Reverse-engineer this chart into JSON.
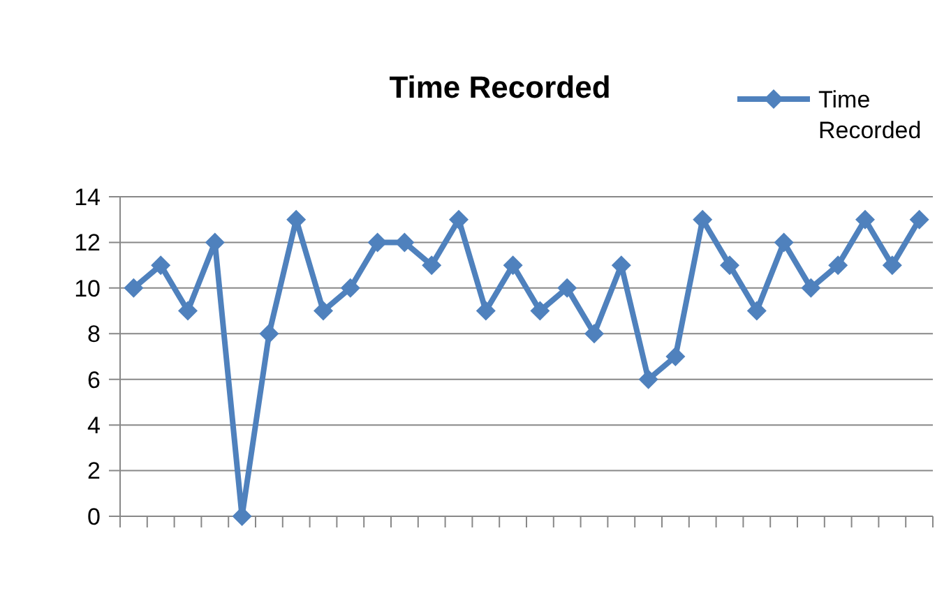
{
  "chart_data": {
    "type": "line",
    "title": "Time Recorded",
    "categories": [
      null,
      null,
      null,
      null,
      null,
      null,
      null,
      null,
      null,
      null,
      null,
      null,
      null,
      null,
      null,
      null,
      null,
      null,
      null,
      null,
      null,
      null,
      null,
      null,
      null,
      null,
      null,
      null,
      null,
      null
    ],
    "series": [
      {
        "name": "Time Recorded",
        "color": "#4f81bd",
        "values": [
          10,
          11,
          9,
          12,
          0,
          8,
          13,
          9,
          10,
          12,
          12,
          11,
          13,
          9,
          11,
          9,
          10,
          8,
          11,
          6,
          7,
          13,
          11,
          9,
          12,
          10,
          11,
          13,
          11,
          13
        ]
      }
    ],
    "ylim": [
      0,
      14
    ],
    "yticks": [
      0,
      2,
      4,
      6,
      8,
      10,
      12,
      14
    ],
    "grid": "y",
    "legend": "top right",
    "marker": "diamond",
    "line_style": "solid"
  }
}
